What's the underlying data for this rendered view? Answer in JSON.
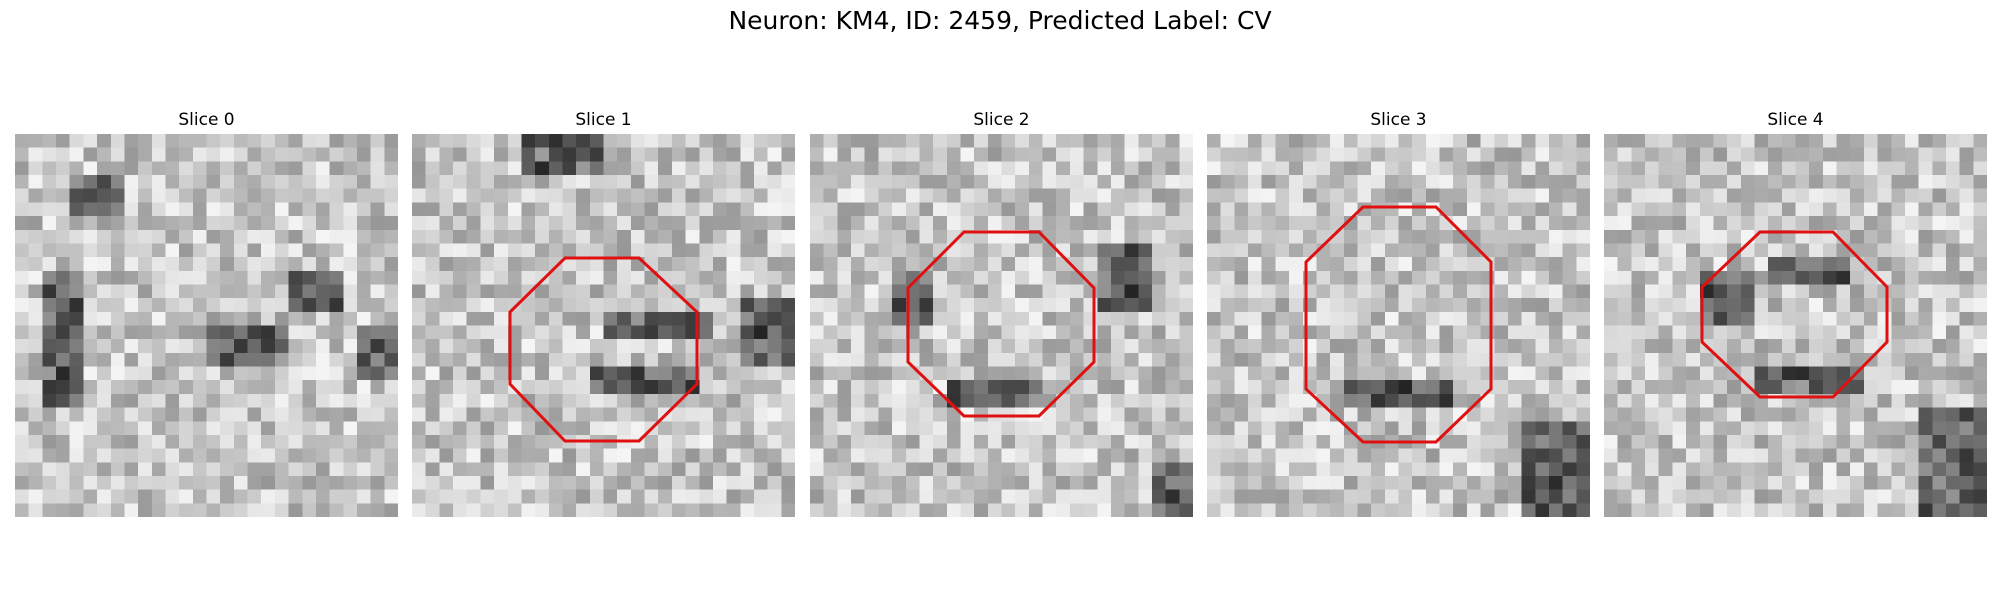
{
  "title": "Neuron: KM4, ID: 2459, Predicted Label: CV",
  "outline_color": "#e01010",
  "panels": [
    {
      "label": "Slice 0",
      "outline": false,
      "seed": 11
    },
    {
      "label": "Slice 1",
      "outline": true,
      "seed": 23
    },
    {
      "label": "Slice 2",
      "outline": true,
      "seed": 37
    },
    {
      "label": "Slice 3",
      "outline": true,
      "seed": 41
    },
    {
      "label": "Slice 4",
      "outline": true,
      "seed": 53
    }
  ]
}
